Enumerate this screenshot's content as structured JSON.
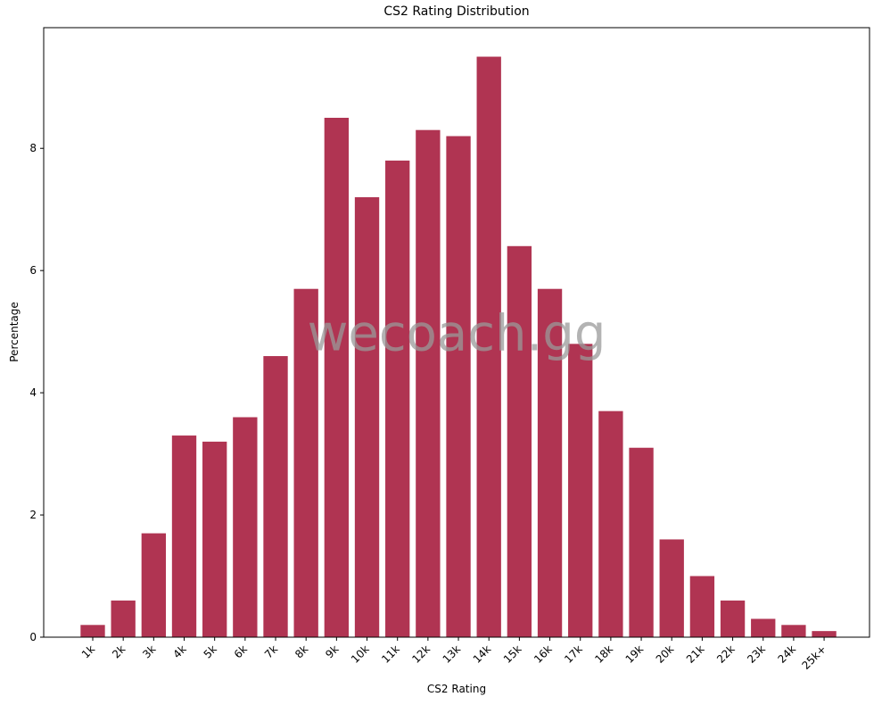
{
  "chart_data": {
    "type": "bar",
    "title": "CS2 Rating Distribution",
    "xlabel": "CS2 Rating",
    "ylabel": "Percentage",
    "watermark": "wecoach.gg",
    "categories": [
      "1k",
      "2k",
      "3k",
      "4k",
      "5k",
      "6k",
      "7k",
      "8k",
      "9k",
      "10k",
      "11k",
      "12k",
      "13k",
      "14k",
      "15k",
      "16k",
      "17k",
      "18k",
      "19k",
      "20k",
      "21k",
      "22k",
      "23k",
      "24k",
      "25k+"
    ],
    "values": [
      0.2,
      0.6,
      1.7,
      3.3,
      3.2,
      3.6,
      4.6,
      5.7,
      8.5,
      7.2,
      7.8,
      8.3,
      8.2,
      9.5,
      6.4,
      5.7,
      4.8,
      3.7,
      3.1,
      1.6,
      1.0,
      0.6,
      0.3,
      0.2,
      0.1
    ],
    "color": "#b03452",
    "ylim": [
      0,
      9.975
    ],
    "yticks": [
      0,
      2,
      4,
      6,
      8
    ],
    "grid": false
  }
}
